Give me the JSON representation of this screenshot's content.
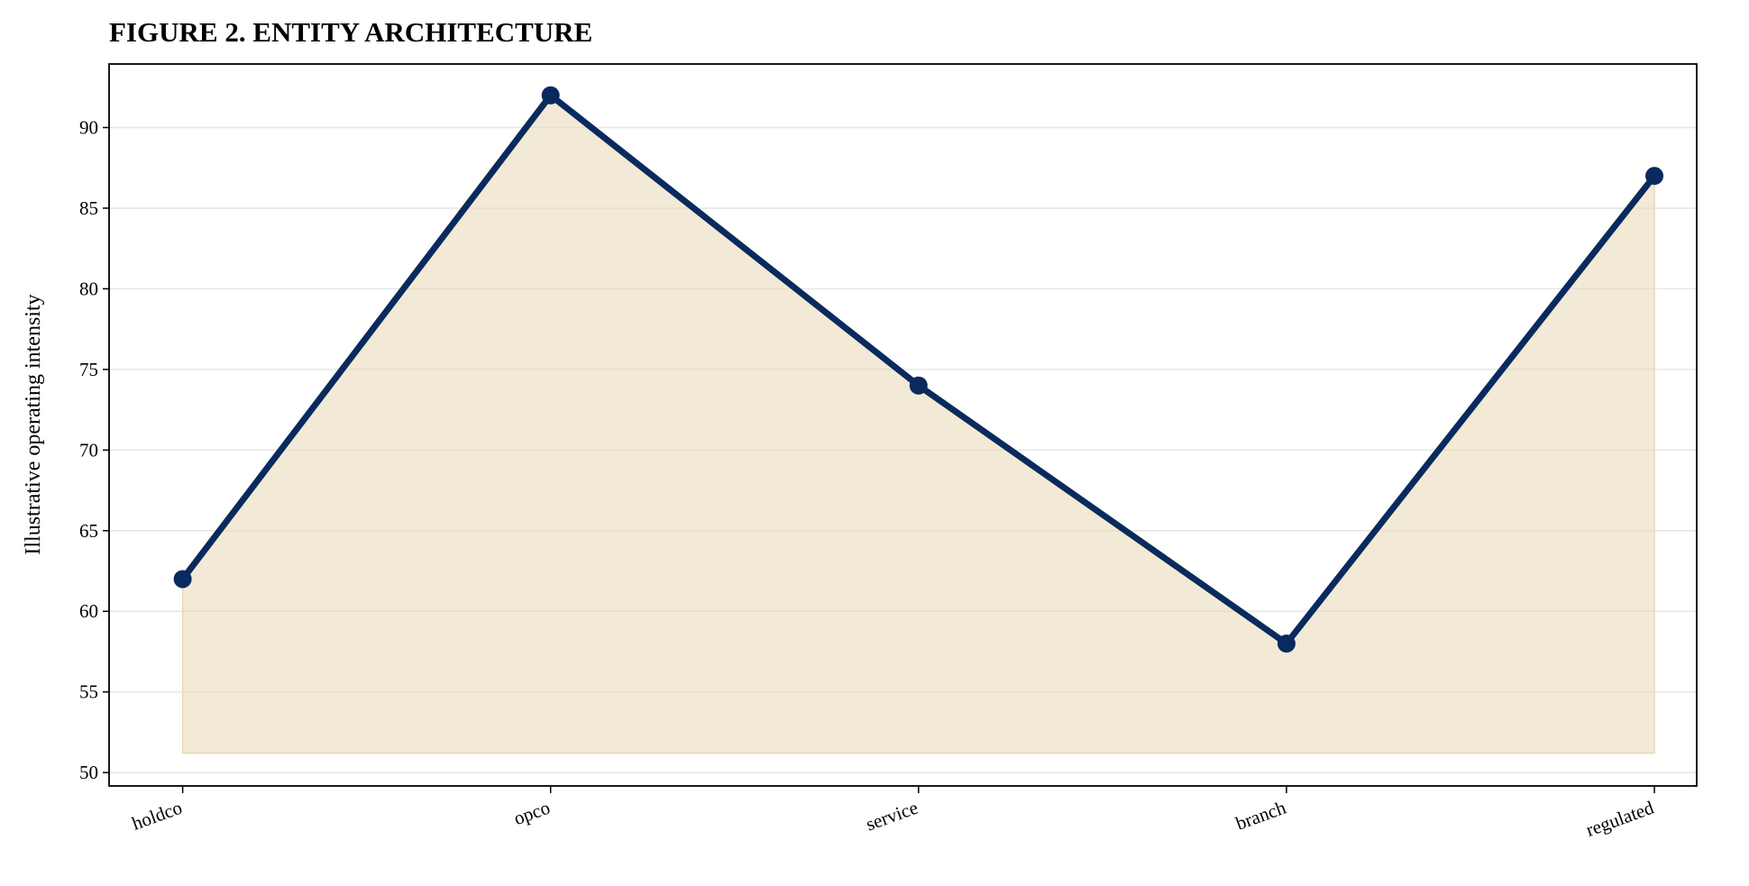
{
  "chart_data": {
    "type": "line",
    "title": "FIGURE 2. ENTITY ARCHITECTURE",
    "y_label": "Illustrative operating intensity",
    "categories": [
      "holdco",
      "opco",
      "service",
      "branch",
      "regulated"
    ],
    "series": [
      {
        "name": "Illustrative operating intensity",
        "color": "#0a2a5e",
        "fill_color": "#e8d9b5",
        "values": [
          62,
          92,
          74,
          58,
          87
        ]
      }
    ],
    "area_baseline": 51.2,
    "ylim": [
      49.17,
      93.94
    ],
    "yticks": [
      50,
      55,
      60,
      65,
      70,
      75,
      80,
      85,
      90
    ],
    "grid": true
  }
}
